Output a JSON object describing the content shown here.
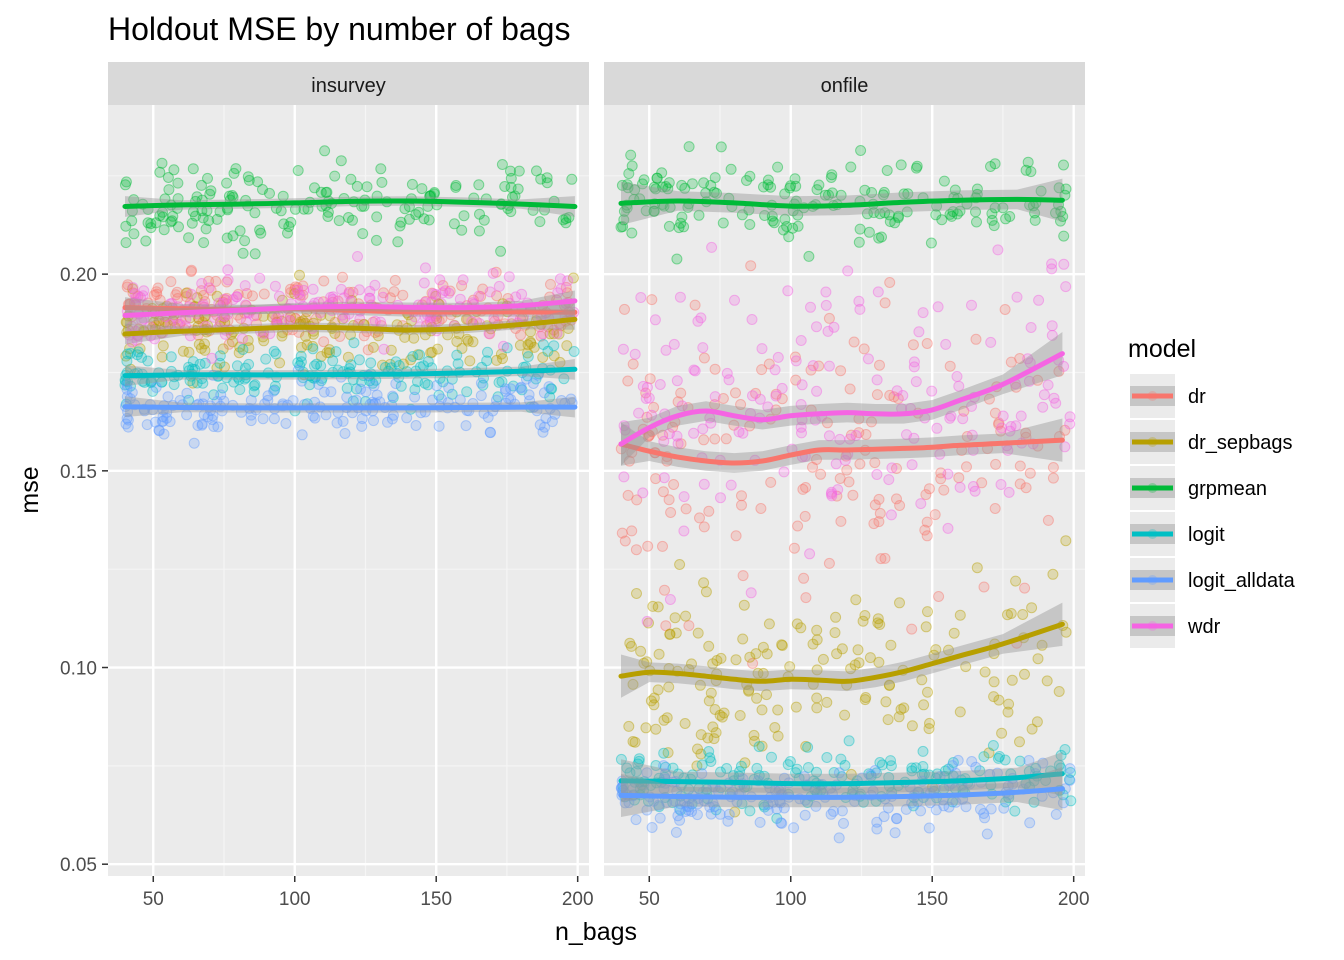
{
  "chart_data": {
    "type": "scatter",
    "title": "Holdout MSE by number of bags",
    "xlabel": "n_bags",
    "ylabel": "mse",
    "xlim": [
      34,
      204
    ],
    "ylim": [
      0.047,
      0.243
    ],
    "x_ticks": [
      50,
      100,
      150,
      200
    ],
    "x_minor_ticks": [
      75,
      125,
      175
    ],
    "y_ticks": [
      0.05,
      0.1,
      0.15,
      0.2
    ],
    "y_minor_ticks": [
      0.075,
      0.125,
      0.175,
      0.225
    ],
    "grid": true,
    "legend": {
      "title": "model",
      "position": "right"
    },
    "point_x_range": [
      40,
      199
    ],
    "facets": [
      {
        "label": "insurvey",
        "series": [
          {
            "name": "dr",
            "color": "#F8766D",
            "point_mean": 0.187,
            "point_spread": 0.0045,
            "smooth": {
              "x": [
                40,
                60,
                80,
                100,
                120,
                140,
                160,
                180,
                199
              ],
              "y": [
                0.1915,
                0.1912,
                0.191,
                0.1912,
                0.1908,
                0.1904,
                0.1904,
                0.1904,
                0.1903
              ]
            }
          },
          {
            "name": "dr_sepbags",
            "color": "#B79F00",
            "point_mean": 0.186,
            "point_spread": 0.005,
            "smooth": {
              "x": [
                40,
                60,
                80,
                100,
                120,
                140,
                160,
                180,
                199
              ],
              "y": [
                0.1848,
                0.1855,
                0.186,
                0.1865,
                0.1863,
                0.1858,
                0.1862,
                0.1872,
                0.1885
              ]
            }
          },
          {
            "name": "grpmean",
            "color": "#00BA38",
            "point_mean": 0.218,
            "point_spread": 0.0055,
            "smooth": {
              "x": [
                40,
                60,
                80,
                100,
                120,
                140,
                160,
                180,
                199
              ],
              "y": [
                0.2172,
                0.2176,
                0.2178,
                0.2181,
                0.2185,
                0.2186,
                0.2183,
                0.2178,
                0.2172
              ]
            }
          },
          {
            "name": "logit",
            "color": "#00BFC4",
            "point_mean": 0.175,
            "point_spread": 0.0035,
            "smooth": {
              "x": [
                40,
                60,
                80,
                100,
                120,
                140,
                160,
                180,
                199
              ],
              "y": [
                0.1742,
                0.1744,
                0.1744,
                0.1744,
                0.1745,
                0.1746,
                0.1749,
                0.1753,
                0.1758
              ]
            }
          },
          {
            "name": "logit_alldata",
            "color": "#619CFF",
            "point_mean": 0.167,
            "point_spread": 0.0035,
            "smooth": {
              "x": [
                40,
                60,
                80,
                100,
                120,
                140,
                160,
                180,
                199
              ],
              "y": [
                0.1663,
                0.1661,
                0.166,
                0.166,
                0.166,
                0.166,
                0.1661,
                0.1662,
                0.1662
              ]
            }
          },
          {
            "name": "wdr",
            "color": "#F564E3",
            "point_mean": 0.1915,
            "point_spread": 0.0045,
            "smooth": {
              "x": [
                40,
                60,
                80,
                100,
                120,
                140,
                160,
                180,
                199
              ],
              "y": [
                0.1895,
                0.1902,
                0.1908,
                0.1915,
                0.1918,
                0.1916,
                0.1915,
                0.192,
                0.1932
              ]
            }
          }
        ]
      },
      {
        "label": "onfile",
        "series": [
          {
            "name": "dr",
            "color": "#F8766D",
            "point_mean": 0.155,
            "point_spread": 0.018,
            "smooth": {
              "x": [
                40,
                50,
                60,
                70,
                80,
                90,
                100,
                110,
                120,
                130,
                140,
                150,
                160,
                175,
                196
              ],
              "y": [
                0.1568,
                0.155,
                0.1535,
                0.1525,
                0.152,
                0.1525,
                0.154,
                0.1553,
                0.1553,
                0.1555,
                0.1557,
                0.156,
                0.1565,
                0.157,
                0.1578
              ]
            }
          },
          {
            "name": "dr_sepbags",
            "color": "#B79F00",
            "point_mean": 0.1,
            "point_spread": 0.012,
            "smooth": {
              "x": [
                40,
                50,
                60,
                70,
                80,
                90,
                100,
                110,
                120,
                130,
                140,
                150,
                160,
                175,
                196
              ],
              "y": [
                0.0978,
                0.0988,
                0.0985,
                0.0978,
                0.097,
                0.0965,
                0.097,
                0.0968,
                0.0965,
                0.0975,
                0.099,
                0.101,
                0.103,
                0.106,
                0.111
              ]
            }
          },
          {
            "name": "grpmean",
            "color": "#00BA38",
            "point_mean": 0.218,
            "point_spread": 0.005,
            "smooth": {
              "x": [
                40,
                60,
                80,
                100,
                120,
                140,
                160,
                180,
                196
              ],
              "y": [
                0.218,
                0.2186,
                0.2181,
                0.2173,
                0.2175,
                0.2183,
                0.2188,
                0.219,
                0.2188
              ]
            }
          },
          {
            "name": "logit",
            "color": "#00BFC4",
            "point_mean": 0.071,
            "point_spread": 0.004,
            "smooth": {
              "x": [
                40,
                60,
                80,
                100,
                120,
                140,
                160,
                180,
                196
              ],
              "y": [
                0.0712,
                0.071,
                0.0708,
                0.0705,
                0.0705,
                0.0708,
                0.0712,
                0.072,
                0.073
              ]
            }
          },
          {
            "name": "logit_alldata",
            "color": "#619CFF",
            "point_mean": 0.067,
            "point_spread": 0.004,
            "smooth": {
              "x": [
                40,
                60,
                80,
                100,
                120,
                140,
                160,
                180,
                196
              ],
              "y": [
                0.0675,
                0.0672,
                0.067,
                0.067,
                0.067,
                0.0672,
                0.0676,
                0.0683,
                0.0692
              ]
            }
          },
          {
            "name": "wdr",
            "color": "#F564E3",
            "point_mean": 0.165,
            "point_spread": 0.017,
            "smooth": {
              "x": [
                40,
                50,
                60,
                70,
                80,
                90,
                100,
                110,
                120,
                130,
                140,
                150,
                160,
                175,
                196
              ],
              "y": [
                0.1568,
                0.161,
                0.164,
                0.1652,
                0.164,
                0.163,
                0.164,
                0.1645,
                0.1648,
                0.1645,
                0.1645,
                0.1655,
                0.168,
                0.172,
                0.1798
              ]
            }
          }
        ]
      }
    ]
  }
}
